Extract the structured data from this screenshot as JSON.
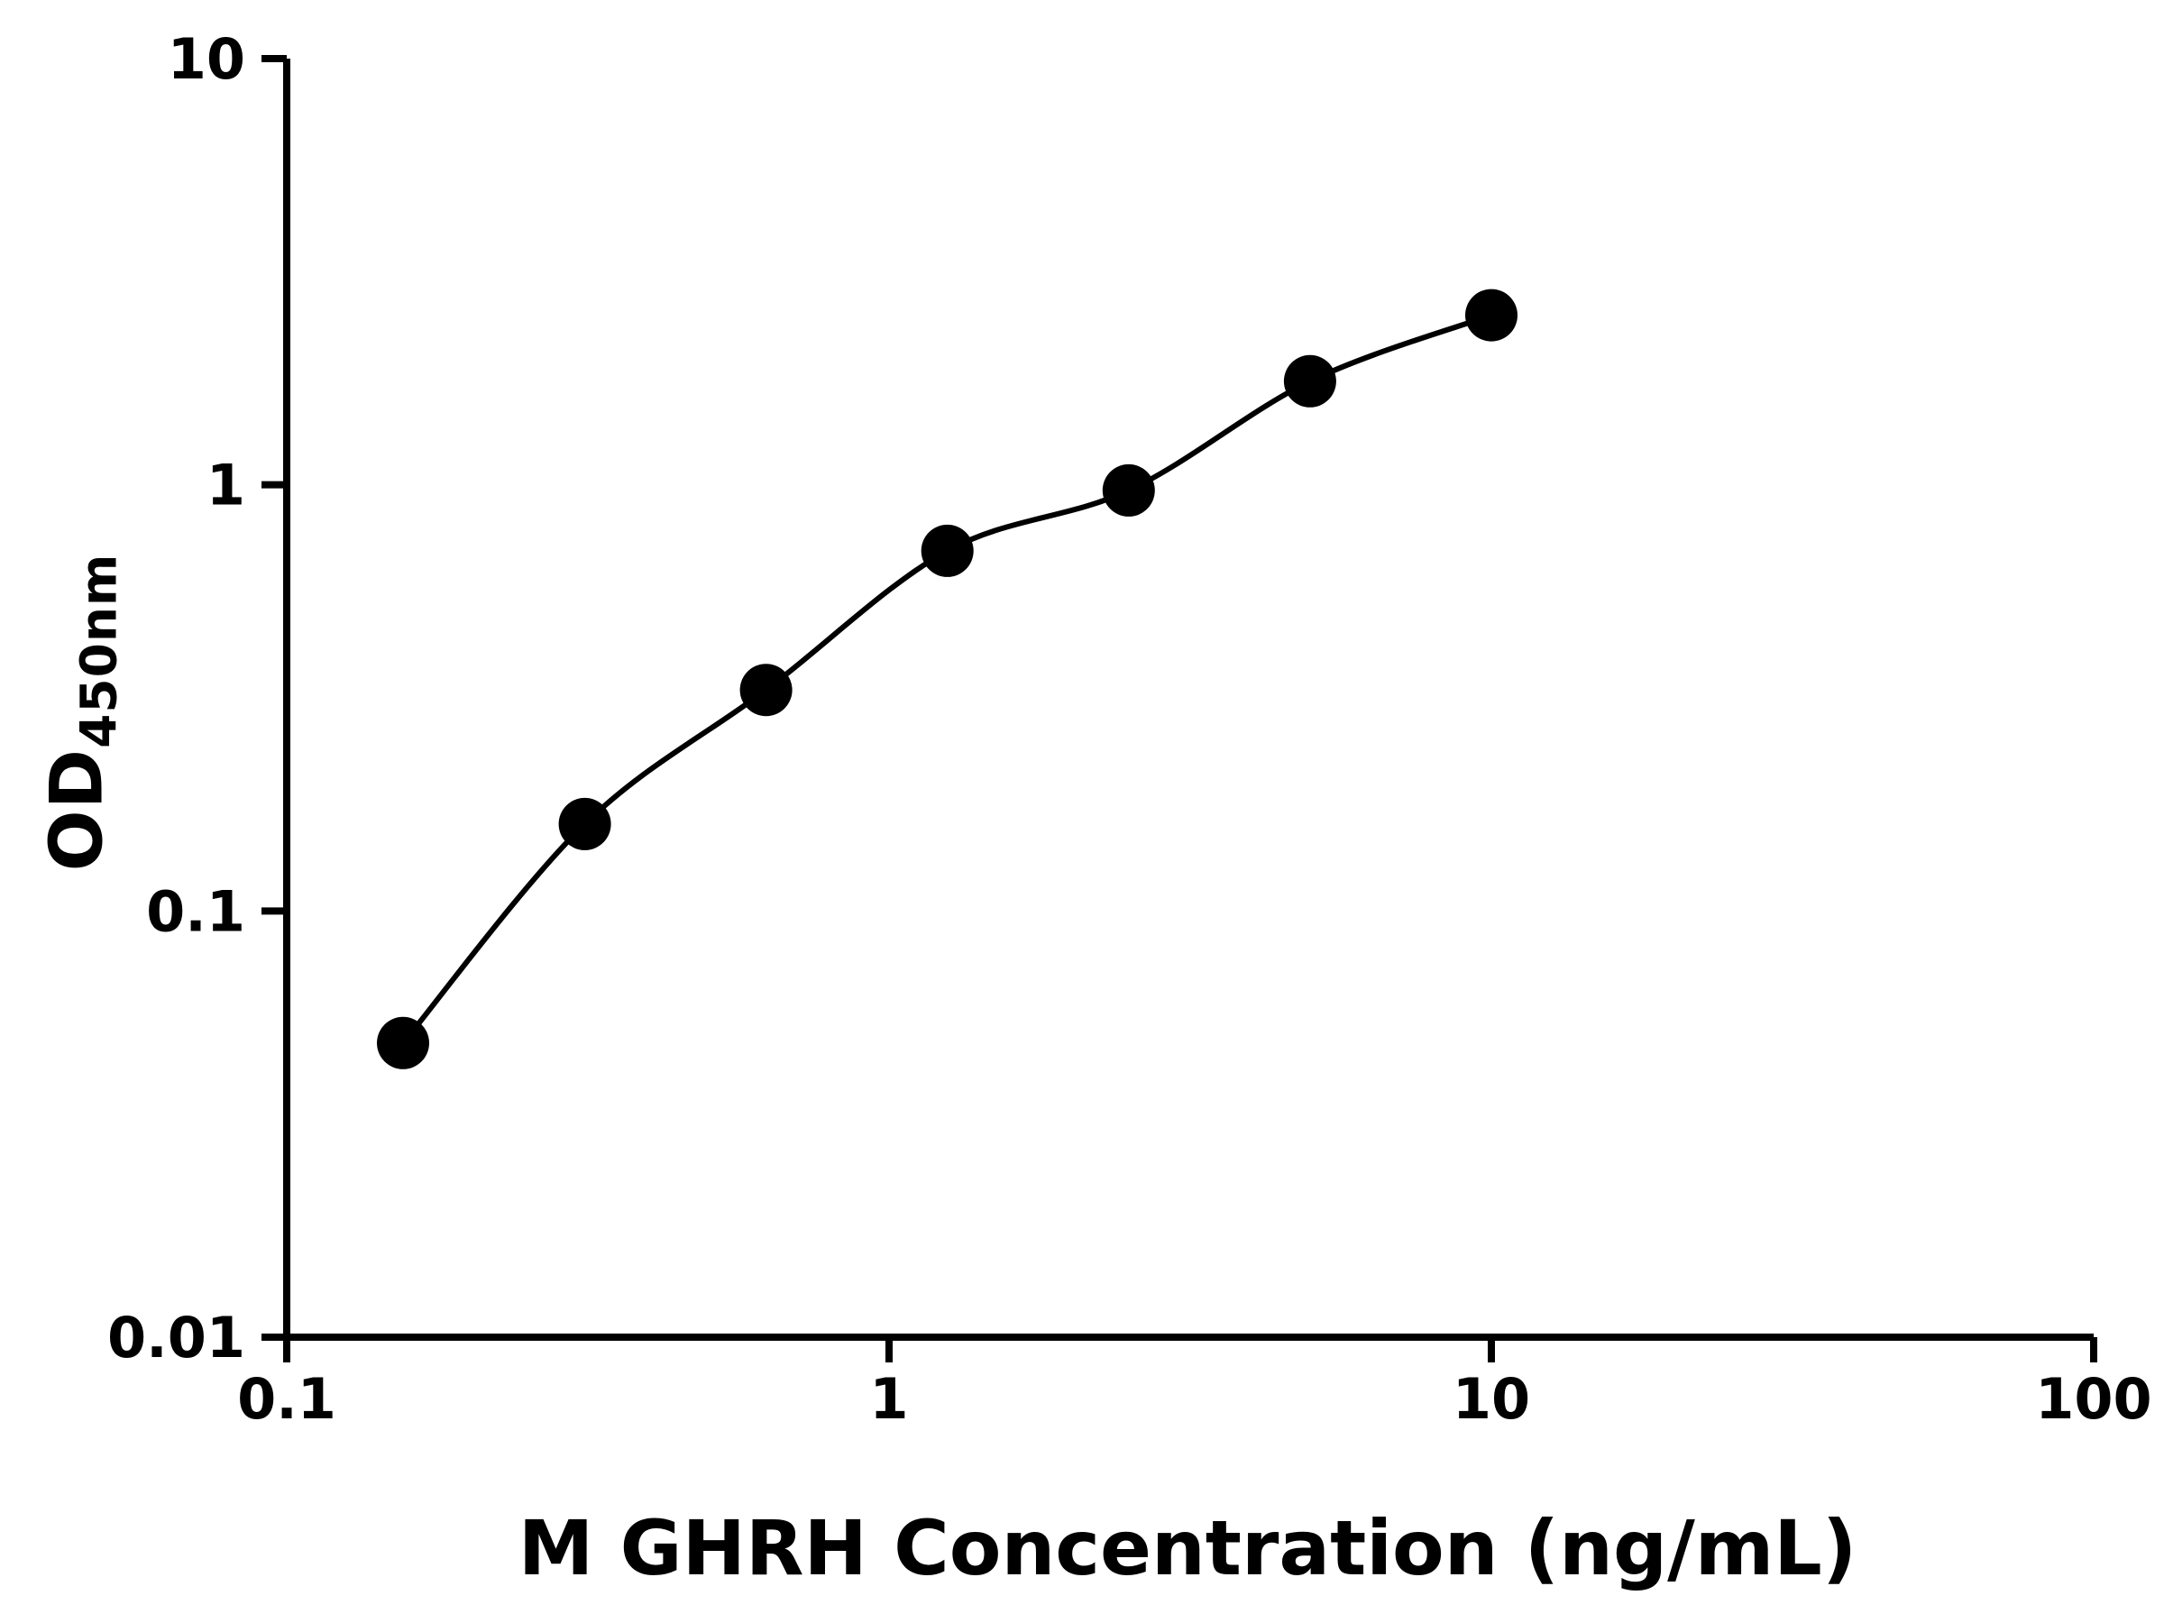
{
  "chart_data": {
    "type": "scatter",
    "title": "",
    "xlabel": "M GHRH Concentration (ng/mL)",
    "ylabel": "OD450nm",
    "ylabel_main": "OD",
    "ylabel_sub": "450nm",
    "x_scale": "log",
    "y_scale": "log",
    "xlim": [
      0.1,
      100
    ],
    "ylim": [
      0.01,
      10
    ],
    "x_ticks": [
      0.1,
      1,
      10,
      100
    ],
    "x_tick_labels": [
      "0.1",
      "1",
      "10",
      "100"
    ],
    "y_ticks": [
      0.01,
      0.1,
      1,
      10
    ],
    "y_tick_labels": [
      "0.01",
      "0.1",
      "1",
      "10"
    ],
    "grid": false,
    "legend": false,
    "series": [
      {
        "marker": "filled-circle",
        "marker_color": "#000000",
        "line_color": "#000000",
        "x": [
          0.156,
          0.3125,
          0.625,
          1.25,
          2.5,
          5,
          10
        ],
        "y": [
          0.049,
          0.16,
          0.33,
          0.7,
          0.97,
          1.75,
          2.5
        ]
      }
    ]
  },
  "colors": {
    "background": "#ffffff",
    "axis": "#000000",
    "text": "#000000"
  }
}
